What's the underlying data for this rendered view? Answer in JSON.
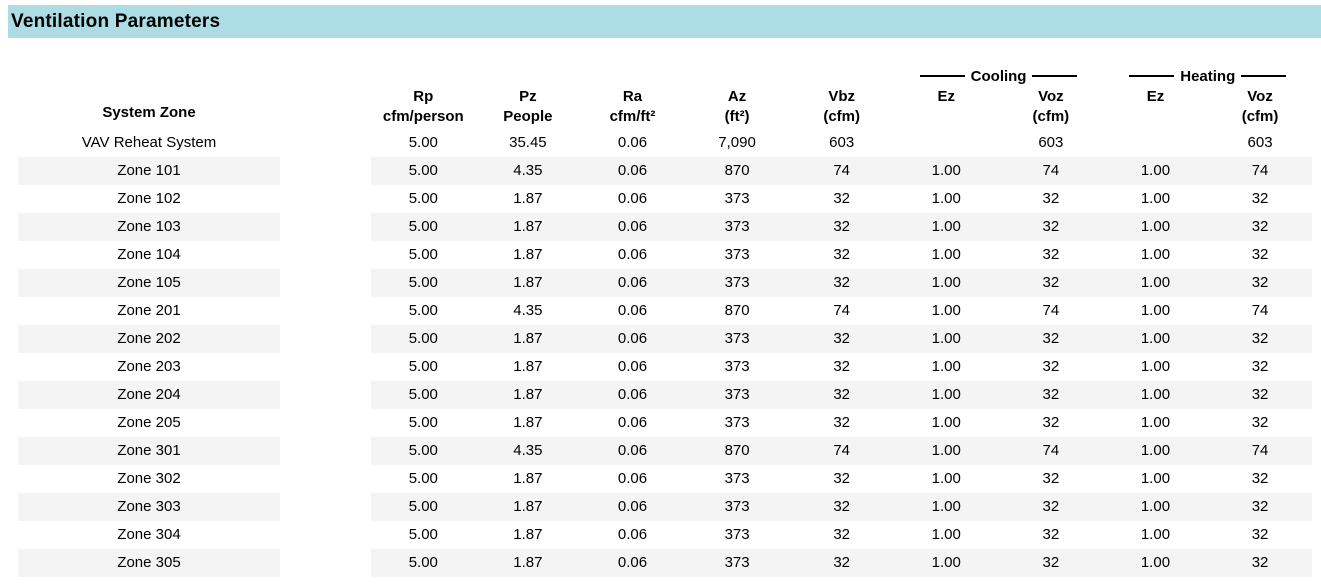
{
  "title": "Ventilation Parameters",
  "theme": {
    "band_color": "#ACDDE4",
    "stripe_color": "#F4F4F4",
    "text_color": "#000000"
  },
  "table": {
    "zone_header": "System Zone",
    "groups": [
      {
        "label": "Cooling"
      },
      {
        "label": "Heating"
      }
    ],
    "columns": [
      {
        "l1": "Rp",
        "l2": "cfm/person"
      },
      {
        "l1": "Pz",
        "l2": "People"
      },
      {
        "l1": "Ra",
        "l2": "cfm/ft²"
      },
      {
        "l1": "Az",
        "l2": "(ft²)"
      },
      {
        "l1": "Vbz",
        "l2": "(cfm)"
      },
      {
        "l1": "Ez",
        "l2": ""
      },
      {
        "l1": "Voz",
        "l2": "(cfm)"
      },
      {
        "l1": "Ez",
        "l2": ""
      },
      {
        "l1": "Voz",
        "l2": "(cfm)"
      }
    ],
    "rows": [
      {
        "zone": "VAV Reheat System",
        "striped": false,
        "values": [
          "5.00",
          "35.45",
          "0.06",
          "7,090",
          "603",
          "",
          "603",
          "",
          "603"
        ]
      },
      {
        "zone": "Zone 101",
        "striped": true,
        "values": [
          "5.00",
          "4.35",
          "0.06",
          "870",
          "74",
          "1.00",
          "74",
          "1.00",
          "74"
        ]
      },
      {
        "zone": "Zone 102",
        "striped": false,
        "values": [
          "5.00",
          "1.87",
          "0.06",
          "373",
          "32",
          "1.00",
          "32",
          "1.00",
          "32"
        ]
      },
      {
        "zone": "Zone 103",
        "striped": true,
        "values": [
          "5.00",
          "1.87",
          "0.06",
          "373",
          "32",
          "1.00",
          "32",
          "1.00",
          "32"
        ]
      },
      {
        "zone": "Zone 104",
        "striped": false,
        "values": [
          "5.00",
          "1.87",
          "0.06",
          "373",
          "32",
          "1.00",
          "32",
          "1.00",
          "32"
        ]
      },
      {
        "zone": "Zone 105",
        "striped": true,
        "values": [
          "5.00",
          "1.87",
          "0.06",
          "373",
          "32",
          "1.00",
          "32",
          "1.00",
          "32"
        ]
      },
      {
        "zone": "Zone 201",
        "striped": false,
        "values": [
          "5.00",
          "4.35",
          "0.06",
          "870",
          "74",
          "1.00",
          "74",
          "1.00",
          "74"
        ]
      },
      {
        "zone": "Zone 202",
        "striped": true,
        "values": [
          "5.00",
          "1.87",
          "0.06",
          "373",
          "32",
          "1.00",
          "32",
          "1.00",
          "32"
        ]
      },
      {
        "zone": "Zone 203",
        "striped": false,
        "values": [
          "5.00",
          "1.87",
          "0.06",
          "373",
          "32",
          "1.00",
          "32",
          "1.00",
          "32"
        ]
      },
      {
        "zone": "Zone 204",
        "striped": true,
        "values": [
          "5.00",
          "1.87",
          "0.06",
          "373",
          "32",
          "1.00",
          "32",
          "1.00",
          "32"
        ]
      },
      {
        "zone": "Zone 205",
        "striped": false,
        "values": [
          "5.00",
          "1.87",
          "0.06",
          "373",
          "32",
          "1.00",
          "32",
          "1.00",
          "32"
        ]
      },
      {
        "zone": "Zone 301",
        "striped": true,
        "values": [
          "5.00",
          "4.35",
          "0.06",
          "870",
          "74",
          "1.00",
          "74",
          "1.00",
          "74"
        ]
      },
      {
        "zone": "Zone 302",
        "striped": false,
        "values": [
          "5.00",
          "1.87",
          "0.06",
          "373",
          "32",
          "1.00",
          "32",
          "1.00",
          "32"
        ]
      },
      {
        "zone": "Zone 303",
        "striped": true,
        "values": [
          "5.00",
          "1.87",
          "0.06",
          "373",
          "32",
          "1.00",
          "32",
          "1.00",
          "32"
        ]
      },
      {
        "zone": "Zone 304",
        "striped": false,
        "values": [
          "5.00",
          "1.87",
          "0.06",
          "373",
          "32",
          "1.00",
          "32",
          "1.00",
          "32"
        ]
      },
      {
        "zone": "Zone 305",
        "striped": true,
        "values": [
          "5.00",
          "1.87",
          "0.06",
          "373",
          "32",
          "1.00",
          "32",
          "1.00",
          "32"
        ]
      }
    ]
  }
}
